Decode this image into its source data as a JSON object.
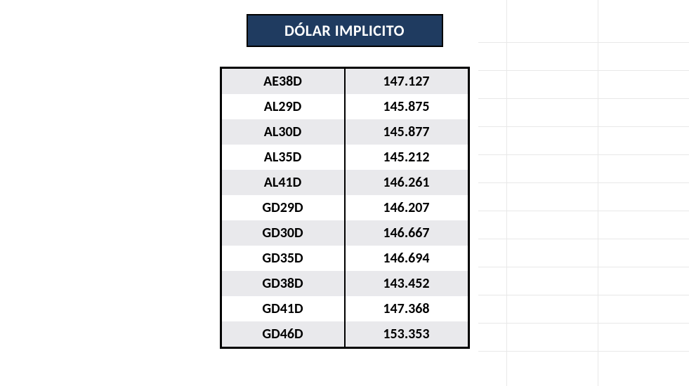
{
  "title": "DÓLAR IMPLICITO",
  "title_bg": "#1f3b60",
  "title_color": "#ffffff",
  "border_color": "#000000",
  "row_text_color": "#000000",
  "row_stripe_even": "#ffffff",
  "row_stripe_odd": "#e9e9ec",
  "font_family": "Calibri, Arial, sans-serif",
  "title_fontsize": 22,
  "cell_fontsize": 20,
  "rows": [
    {
      "ticker": "AE38D",
      "value": "147.127"
    },
    {
      "ticker": "AL29D",
      "value": "145.875"
    },
    {
      "ticker": "AL30D",
      "value": "145.877"
    },
    {
      "ticker": "AL35D",
      "value": "145.212"
    },
    {
      "ticker": "AL41D",
      "value": "146.261"
    },
    {
      "ticker": "GD29D",
      "value": "146.207"
    },
    {
      "ticker": "GD30D",
      "value": "146.667"
    },
    {
      "ticker": "GD35D",
      "value": "146.694"
    },
    {
      "ticker": "GD38D",
      "value": "143.452"
    },
    {
      "ticker": "GD41D",
      "value": "147.368"
    },
    {
      "ticker": "GD46D",
      "value": "153.353"
    }
  ]
}
